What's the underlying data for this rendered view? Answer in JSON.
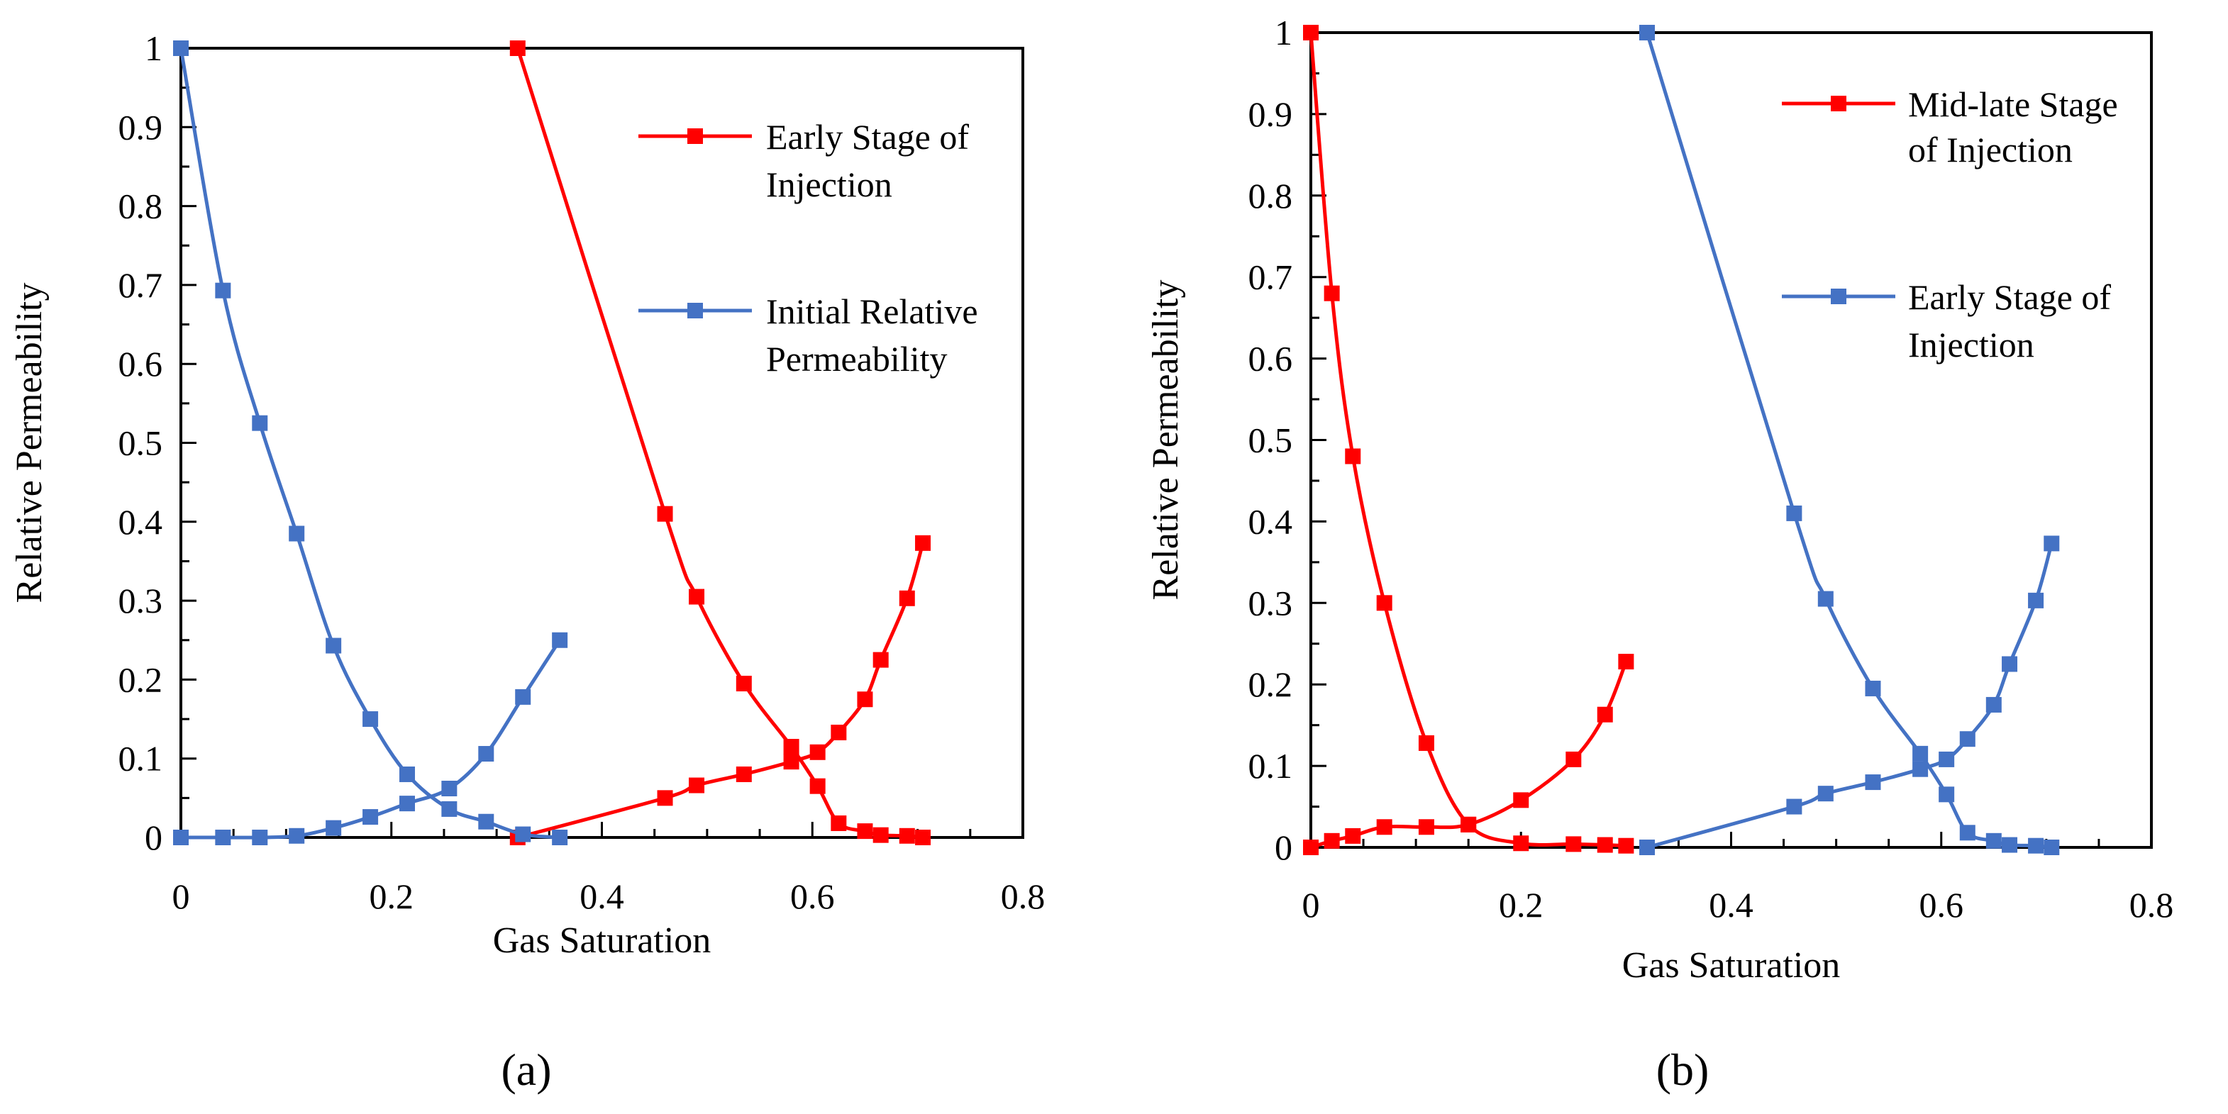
{
  "chart_data": [
    {
      "type": "scatter",
      "panel_label": "(a)",
      "xlabel": "Gas Saturation",
      "ylabel": "Relative Permeability",
      "xlim": [
        0,
        0.8
      ],
      "ylim": [
        0,
        1
      ],
      "x_ticks": [
        "0",
        "0.2",
        "0.4",
        "0.6",
        "0.8"
      ],
      "y_ticks": [
        "0",
        "0.1",
        "0.2",
        "0.3",
        "0.4",
        "0.5",
        "0.6",
        "0.7",
        "0.8",
        "0.9",
        "1"
      ],
      "legend_position": "top-right",
      "series": [
        {
          "name": "Early Stage of Injection",
          "legend_lines": [
            "Early Stage of",
            "Injection"
          ],
          "color": "#ff0000",
          "curves": [
            {
              "x": [
                0.32,
                0.46,
                0.49,
                0.535,
                0.58,
                0.605,
                0.625,
                0.65,
                0.665,
                0.69,
                0.705
              ],
              "y": [
                1.0,
                0.41,
                0.305,
                0.195,
                0.115,
                0.065,
                0.018,
                0.008,
                0.003,
                0.002,
                0.0
              ]
            },
            {
              "x": [
                0.32,
                0.46,
                0.49,
                0.535,
                0.58,
                0.605,
                0.625,
                0.65,
                0.665,
                0.69,
                0.705
              ],
              "y": [
                0.0,
                0.05,
                0.066,
                0.08,
                0.096,
                0.108,
                0.133,
                0.175,
                0.225,
                0.303,
                0.373
              ]
            }
          ]
        },
        {
          "name": "Initial Relative Permeability",
          "legend_lines": [
            "Initial Relative",
            "Permeability"
          ],
          "color": "#4472c4",
          "curves": [
            {
              "x": [
                0.0,
                0.04,
                0.075,
                0.11,
                0.145,
                0.18,
                0.215,
                0.255,
                0.29,
                0.325,
                0.36
              ],
              "y": [
                1.0,
                0.693,
                0.525,
                0.385,
                0.243,
                0.15,
                0.08,
                0.036,
                0.02,
                0.004,
                0.0
              ]
            },
            {
              "x": [
                0.0,
                0.04,
                0.075,
                0.11,
                0.145,
                0.18,
                0.215,
                0.255,
                0.29,
                0.325,
                0.36
              ],
              "y": [
                0.0,
                0.0,
                0.0,
                0.002,
                0.012,
                0.026,
                0.043,
                0.062,
                0.106,
                0.178,
                0.25
              ]
            }
          ]
        }
      ]
    },
    {
      "type": "scatter",
      "panel_label": "(b)",
      "xlabel": "Gas Saturation",
      "ylabel": "Relative Permeability",
      "xlim": [
        0,
        0.8
      ],
      "ylim": [
        0,
        1
      ],
      "x_ticks": [
        "0",
        "0.2",
        "0.4",
        "0.6",
        "0.8"
      ],
      "y_ticks": [
        "0",
        "0.1",
        "0.2",
        "0.3",
        "0.4",
        "0.5",
        "0.6",
        "0.7",
        "0.8",
        "0.9",
        "1"
      ],
      "legend_position": "top-right",
      "series": [
        {
          "name": "Mid-late Stage of Injection",
          "legend_lines": [
            "Mid-late Stage",
            "of Injection"
          ],
          "color": "#ff0000",
          "curves": [
            {
              "x": [
                0.0,
                0.02,
                0.04,
                0.07,
                0.11,
                0.15,
                0.2,
                0.25,
                0.28,
                0.3
              ],
              "y": [
                1.0,
                0.68,
                0.48,
                0.3,
                0.128,
                0.028,
                0.005,
                0.004,
                0.003,
                0.002
              ]
            },
            {
              "x": [
                0.0,
                0.02,
                0.04,
                0.07,
                0.11,
                0.15,
                0.2,
                0.25,
                0.28,
                0.3
              ],
              "y": [
                0.0,
                0.008,
                0.014,
                0.025,
                0.025,
                0.028,
                0.058,
                0.108,
                0.163,
                0.228
              ]
            }
          ]
        },
        {
          "name": "Early Stage of Injection",
          "legend_lines": [
            "Early Stage of",
            "Injection"
          ],
          "color": "#4472c4",
          "curves": [
            {
              "x": [
                0.32,
                0.46,
                0.49,
                0.535,
                0.58,
                0.605,
                0.625,
                0.65,
                0.665,
                0.69,
                0.705
              ],
              "y": [
                1.0,
                0.41,
                0.305,
                0.195,
                0.115,
                0.065,
                0.018,
                0.008,
                0.003,
                0.002,
                0.0
              ]
            },
            {
              "x": [
                0.32,
                0.46,
                0.49,
                0.535,
                0.58,
                0.605,
                0.625,
                0.65,
                0.665,
                0.69,
                0.705
              ],
              "y": [
                0.0,
                0.05,
                0.066,
                0.08,
                0.096,
                0.108,
                0.133,
                0.175,
                0.225,
                0.303,
                0.373
              ]
            }
          ]
        }
      ]
    }
  ]
}
